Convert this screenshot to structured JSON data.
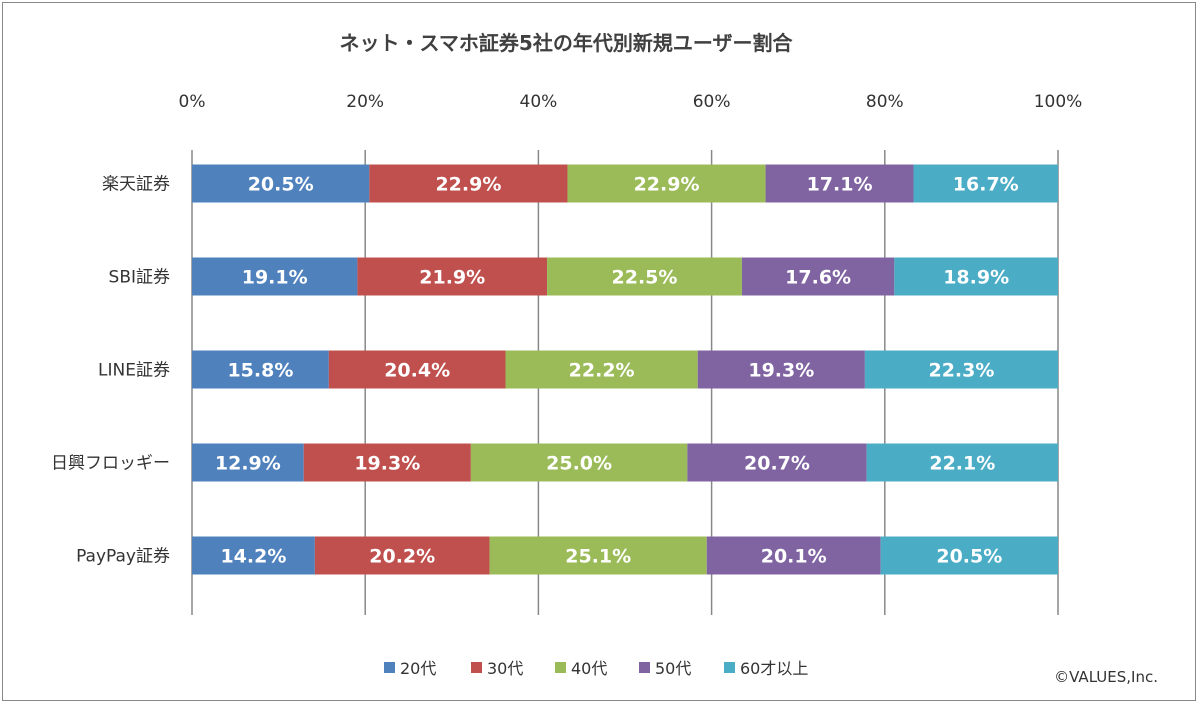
{
  "chart_data": {
    "type": "bar",
    "orientation": "horizontal",
    "stacked": "percent",
    "title": "ネット・スマホ証券5社の年代別新規ユーザー割合",
    "categories": [
      "楽天証券",
      "SBI証券",
      "LINE証券",
      "日興フロッギー",
      "PayPay証券"
    ],
    "series": [
      {
        "name": "20代",
        "color": "#4f81bd",
        "values": [
          20.5,
          19.1,
          15.8,
          12.9,
          14.2
        ]
      },
      {
        "name": "30代",
        "color": "#c0504d",
        "values": [
          22.9,
          21.9,
          20.4,
          19.3,
          20.2
        ]
      },
      {
        "name": "40代",
        "color": "#9bbb59",
        "values": [
          22.9,
          22.5,
          22.2,
          25.0,
          25.1
        ]
      },
      {
        "name": "50代",
        "color": "#8064a2",
        "values": [
          17.1,
          17.6,
          19.3,
          20.7,
          20.1
        ]
      },
      {
        "name": "60才以上",
        "color": "#4bacc6",
        "values": [
          16.7,
          18.9,
          22.3,
          22.1,
          20.5
        ]
      }
    ],
    "xticks": [
      "0%",
      "20%",
      "40%",
      "60%",
      "80%",
      "100%"
    ],
    "xlim": [
      0,
      100
    ],
    "axis_position": "top",
    "grid": true,
    "legend": "bottom"
  },
  "credit": "©VALUES,Inc."
}
